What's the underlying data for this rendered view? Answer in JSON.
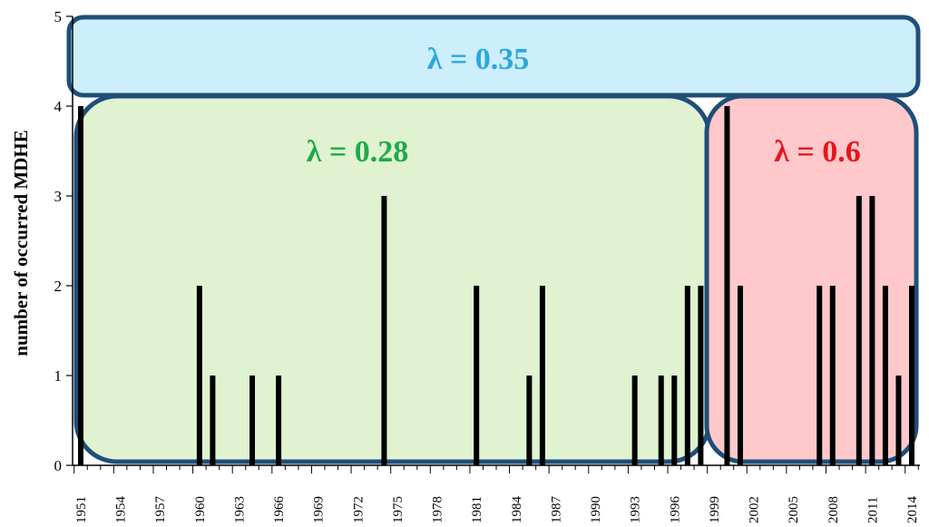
{
  "chart_data": {
    "type": "bar",
    "title": "",
    "xlabel": "",
    "ylabel": "number of occurred MDHE",
    "ylim": [
      0,
      5
    ],
    "xlim": [
      1951,
      2014
    ],
    "yticks": [
      0,
      1,
      2,
      3,
      4,
      5
    ],
    "xticks": [
      1951,
      1954,
      1957,
      1960,
      1963,
      1966,
      1969,
      1972,
      1975,
      1978,
      1981,
      1984,
      1987,
      1990,
      1993,
      1996,
      1999,
      2002,
      2005,
      2008,
      2011,
      2014
    ],
    "grid": false,
    "years": [
      1951,
      1960,
      1961,
      1964,
      1966,
      1974,
      1981,
      1985,
      1986,
      1993,
      1995,
      1996,
      1997,
      1998,
      2000,
      2001,
      2007,
      2008,
      2010,
      2011,
      2012,
      2013,
      2014
    ],
    "values": [
      4,
      2,
      1,
      1,
      1,
      3,
      2,
      1,
      2,
      1,
      1,
      1,
      2,
      2,
      4,
      2,
      2,
      2,
      3,
      3,
      2,
      1,
      2
    ],
    "bar_color": "#000000",
    "annotations": [
      {
        "text": "λ = 0.35",
        "span": [
          1951,
          2014
        ],
        "fill": "#cdeefb",
        "stroke": "#1f4e79",
        "color": "#29a8e0"
      },
      {
        "text": "λ = 0.28",
        "span": [
          1951,
          1998
        ],
        "fill": "#e0f2d0",
        "stroke": "#1f4e79",
        "color": "#1faa48"
      },
      {
        "text": "λ = 0.6",
        "span": [
          1999,
          2014
        ],
        "fill": "#ffc9cb",
        "stroke": "#1f4e79",
        "color": "#e8141b"
      }
    ]
  }
}
